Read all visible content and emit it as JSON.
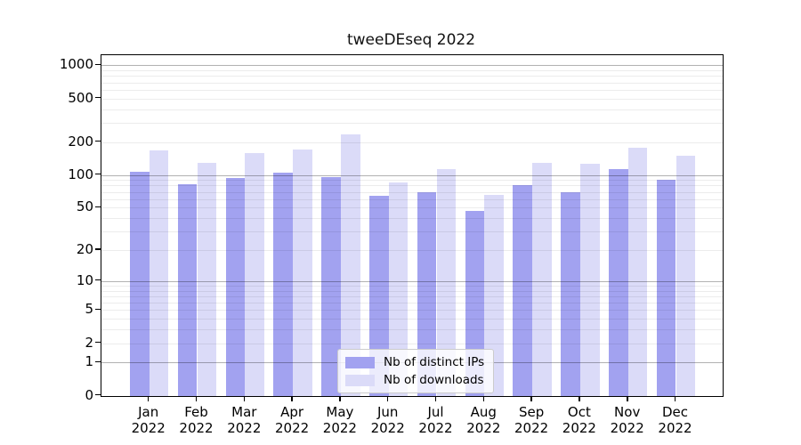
{
  "figure": {
    "title": "tweeDEseq 2022"
  },
  "colors": {
    "bar_distinct_ips": "#a2a2f0",
    "bar_downloads": "#dbdbf8",
    "major_grid": "#b3b3b3",
    "minor_grid": "#ececec",
    "axis_frame": "#000000",
    "background": "#ffffff",
    "legend_border": "#cccccc"
  },
  "y_axis": {
    "tick_labels": [
      "1000",
      "500",
      "200",
      "100",
      "50",
      "20",
      "10",
      "5",
      "2",
      "1",
      "0"
    ]
  },
  "x_axis": {
    "months": [
      "Jan",
      "Feb",
      "Mar",
      "Apr",
      "May",
      "Jun",
      "Jul",
      "Aug",
      "Sep",
      "Oct",
      "Nov",
      "Dec"
    ],
    "year": "2022"
  },
  "legend": {
    "items": [
      {
        "label": "Nb of distinct IPs"
      },
      {
        "label": "Nb of downloads"
      }
    ]
  },
  "chart_data": {
    "type": "bar",
    "title": "tweeDEseq 2022",
    "categories": [
      "Jan 2022",
      "Feb 2022",
      "Mar 2022",
      "Apr 2022",
      "May 2022",
      "Jun 2022",
      "Jul 2022",
      "Aug 2022",
      "Sep 2022",
      "Oct 2022",
      "Nov 2022",
      "Dec 2022"
    ],
    "series": [
      {
        "name": "Nb of distinct IPs",
        "color": "#a2a2f0",
        "values": [
          108,
          83,
          93,
          106,
          96,
          64,
          69,
          47,
          80,
          70,
          114,
          90
        ]
      },
      {
        "name": "Nb of downloads",
        "color": "#dbdbf8",
        "values": [
          167,
          128,
          158,
          170,
          236,
          86,
          114,
          66,
          130,
          127,
          176,
          151
        ]
      }
    ],
    "xlabel": "",
    "ylabel": "",
    "y_scale": "log10(1+x)",
    "y_ticks": [
      1000,
      500,
      200,
      100,
      50,
      20,
      10,
      5,
      2,
      1,
      0
    ],
    "ylim": [
      0,
      1236
    ],
    "grid": true,
    "grid_minor_per_decade": [
      2,
      3,
      4,
      5,
      6,
      7,
      8,
      9
    ],
    "grid_major": [
      1,
      10,
      100,
      1000
    ],
    "legend_position": "lower center"
  }
}
